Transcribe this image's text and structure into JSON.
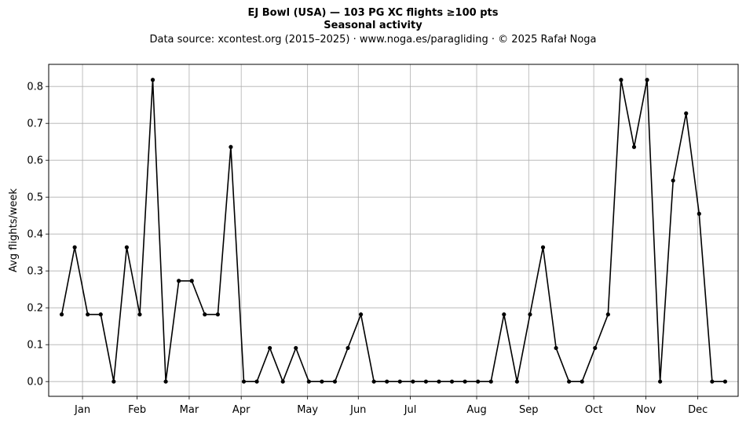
{
  "chart_data": {
    "type": "line",
    "title": "EJ Bowl (USA)  —  103 PG XC flights ≥100 pts",
    "subtitle": "Seasonal activity",
    "source": "Data source: xcontest.org (2015–2025)  ·  www.noga.es/paragliding  ·  © 2025 Rafał Noga",
    "xlabel": "",
    "ylabel": "Avg flights/week",
    "ylim": [
      -0.04,
      0.86
    ],
    "xlim": [
      0,
      53
    ],
    "grid": true,
    "month_ticks": [
      {
        "label": "Jan",
        "week": 2.6
      },
      {
        "label": "Feb",
        "week": 6.8
      },
      {
        "label": "Mar",
        "week": 10.8
      },
      {
        "label": "Apr",
        "week": 14.8
      },
      {
        "label": "May",
        "week": 19.9
      },
      {
        "label": "Jun",
        "week": 23.8
      },
      {
        "label": "Jul",
        "week": 27.8
      },
      {
        "label": "Aug",
        "week": 32.9
      },
      {
        "label": "Sep",
        "week": 36.9
      },
      {
        "label": "Oct",
        "week": 41.9
      },
      {
        "label": "Nov",
        "week": 45.9
      },
      {
        "label": "Dec",
        "week": 49.9
      }
    ],
    "y_ticks": [
      0.0,
      0.1,
      0.2,
      0.3,
      0.4,
      0.5,
      0.6,
      0.7,
      0.8
    ],
    "y_tick_labels": [
      "0.0",
      "0.1",
      "0.2",
      "0.3",
      "0.4",
      "0.5",
      "0.6",
      "0.7",
      "0.8"
    ],
    "series": [
      {
        "name": "",
        "x": [
          1,
          2,
          3,
          4,
          5,
          6,
          7,
          8,
          9,
          10,
          11,
          12,
          13,
          14,
          15,
          16,
          17,
          18,
          19,
          20,
          21,
          22,
          23,
          24,
          25,
          26,
          27,
          28,
          29,
          30,
          31,
          32,
          33,
          34,
          35,
          36,
          37,
          38,
          39,
          40,
          41,
          42,
          43,
          44,
          45,
          46,
          47,
          48,
          49,
          50,
          51,
          52
        ],
        "values": [
          0.182,
          0.364,
          0.182,
          0.182,
          0.0,
          0.364,
          0.182,
          0.818,
          0.0,
          0.273,
          0.273,
          0.182,
          0.182,
          0.636,
          0.0,
          0.0,
          0.091,
          0.0,
          0.091,
          0.0,
          0.0,
          0.0,
          0.091,
          0.182,
          0.0,
          0.0,
          0.0,
          0.0,
          0.0,
          0.0,
          0.0,
          0.0,
          0.0,
          0.0,
          0.182,
          0.0,
          0.182,
          0.364,
          0.091,
          0.0,
          0.0,
          0.091,
          0.182,
          0.818,
          0.636,
          0.818,
          0.0,
          0.545,
          0.727,
          0.455,
          0.0,
          0.0
        ],
        "color": "#000000"
      }
    ]
  }
}
